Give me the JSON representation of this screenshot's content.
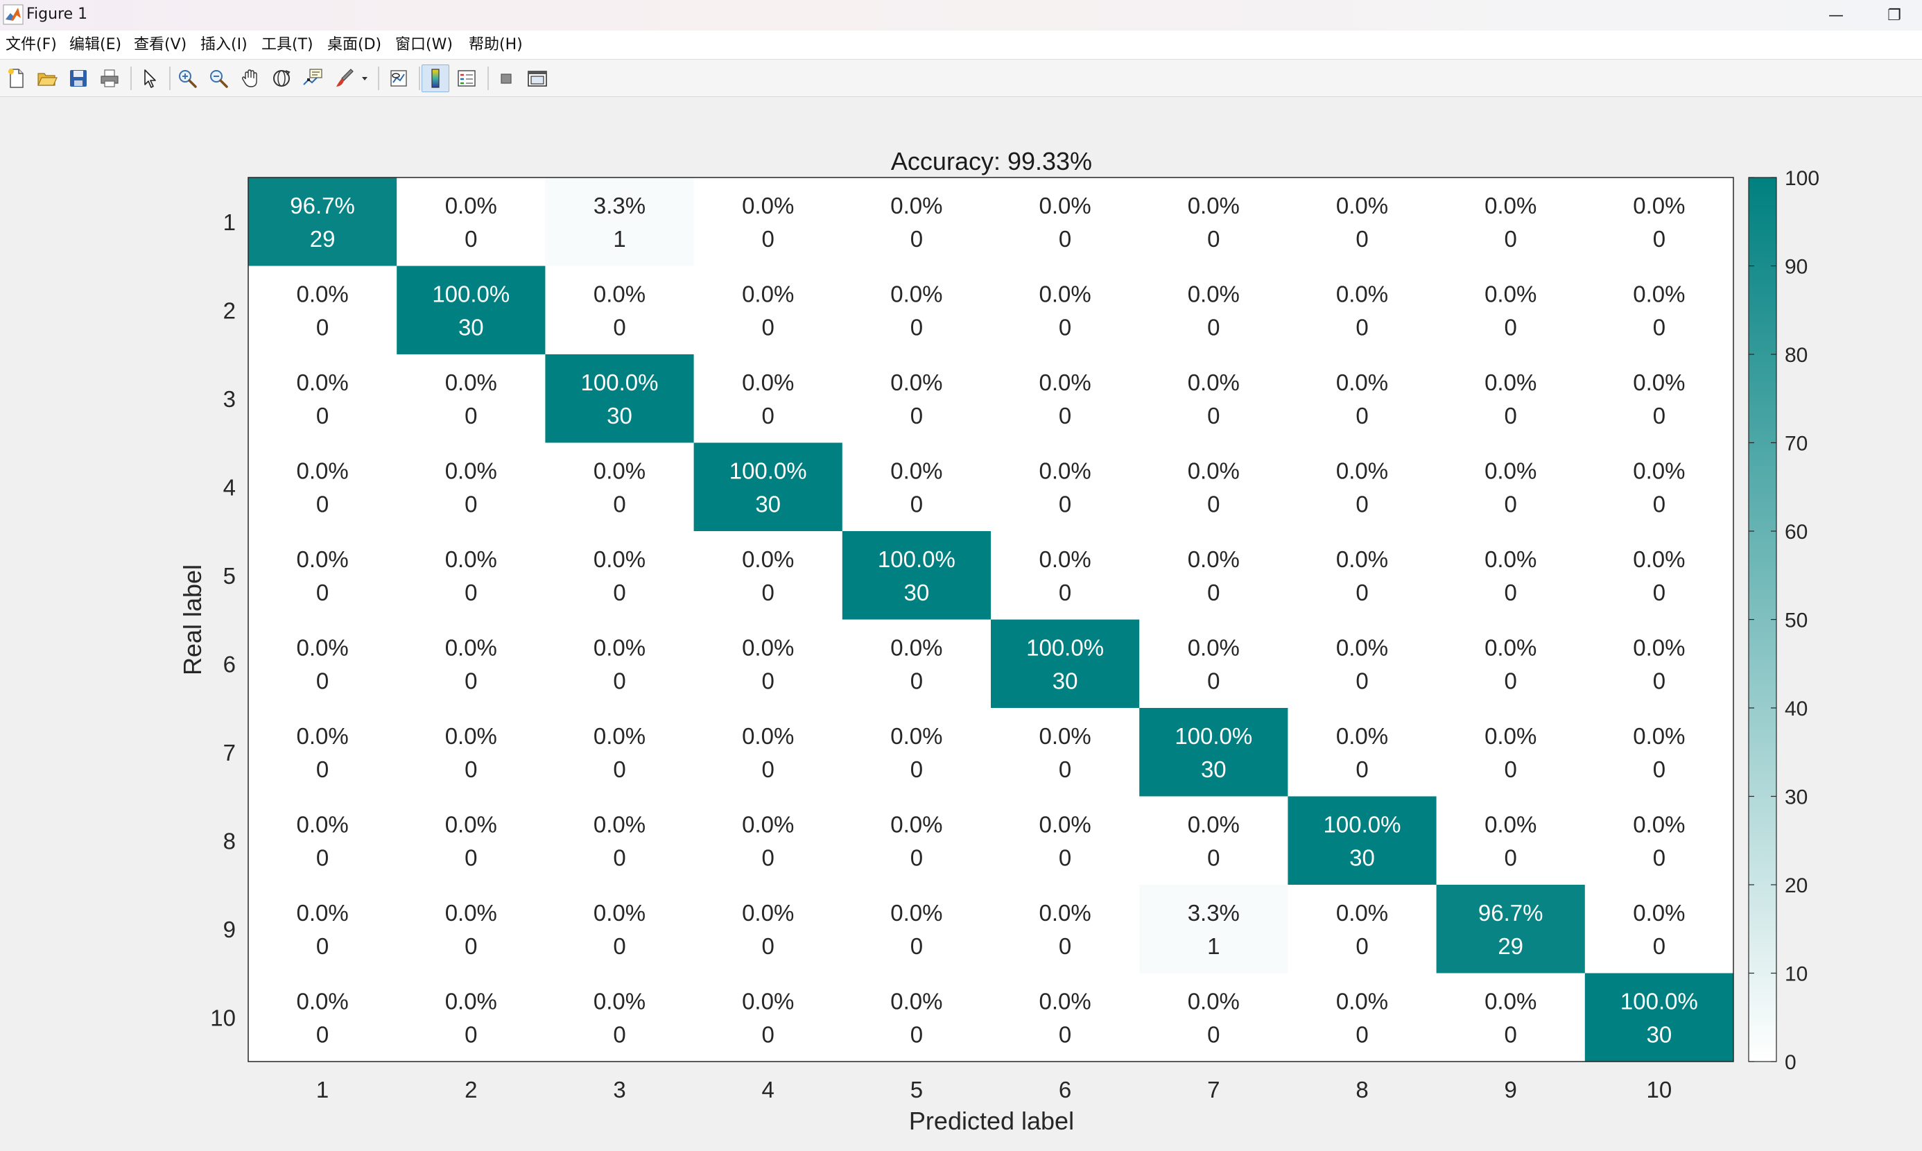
{
  "window": {
    "title": "Figure 1",
    "minimize_glyph": "—",
    "restore_glyph": "❐"
  },
  "menubar": {
    "items": [
      "文件(F)",
      "编辑(E)",
      "查看(V)",
      "插入(I)",
      "工具(T)",
      "桌面(D)",
      "窗口(W)",
      "帮助(H)"
    ]
  },
  "toolbar": {
    "buttons": [
      {
        "name": "new-figure",
        "icon": "new-file-icon"
      },
      {
        "name": "open-file",
        "icon": "folder-open-icon"
      },
      {
        "name": "save",
        "icon": "save-icon"
      },
      {
        "name": "print",
        "icon": "print-icon"
      },
      {
        "name": "edit-plot",
        "icon": "arrow-pointer-icon"
      },
      {
        "name": "zoom-in",
        "icon": "zoom-in-icon"
      },
      {
        "name": "zoom-out",
        "icon": "zoom-out-icon"
      },
      {
        "name": "pan",
        "icon": "hand-pan-icon"
      },
      {
        "name": "rotate-3d",
        "icon": "rotate-3d-icon"
      },
      {
        "name": "data-cursor",
        "icon": "data-tip-icon"
      },
      {
        "name": "brush",
        "icon": "brush-icon"
      },
      {
        "name": "link-plot",
        "icon": "link-plot-icon"
      },
      {
        "name": "insert-colorbar",
        "icon": "colorbar-icon",
        "active": true
      },
      {
        "name": "insert-legend",
        "icon": "legend-icon"
      },
      {
        "name": "hide-plot-tools",
        "icon": "hide-tools-icon"
      },
      {
        "name": "show-plot-tools",
        "icon": "show-tools-icon"
      }
    ]
  },
  "colors": {
    "accent": "#008080",
    "cell_text_dark": "#262626",
    "cell_text_light": "#ffffff",
    "axis_text": "#262626"
  },
  "chart_data": {
    "type": "heatmap",
    "title": "Accuracy: 99.33%",
    "xlabel": "Predicted label",
    "ylabel": "Real label",
    "row_labels": [
      "1",
      "2",
      "3",
      "4",
      "5",
      "6",
      "7",
      "8",
      "9",
      "10"
    ],
    "col_labels": [
      "1",
      "2",
      "3",
      "4",
      "5",
      "6",
      "7",
      "8",
      "9",
      "10"
    ],
    "percent_labels": [
      [
        "96.7%",
        "0.0%",
        "3.3%",
        "0.0%",
        "0.0%",
        "0.0%",
        "0.0%",
        "0.0%",
        "0.0%",
        "0.0%"
      ],
      [
        "0.0%",
        "100.0%",
        "0.0%",
        "0.0%",
        "0.0%",
        "0.0%",
        "0.0%",
        "0.0%",
        "0.0%",
        "0.0%"
      ],
      [
        "0.0%",
        "0.0%",
        "100.0%",
        "0.0%",
        "0.0%",
        "0.0%",
        "0.0%",
        "0.0%",
        "0.0%",
        "0.0%"
      ],
      [
        "0.0%",
        "0.0%",
        "0.0%",
        "100.0%",
        "0.0%",
        "0.0%",
        "0.0%",
        "0.0%",
        "0.0%",
        "0.0%"
      ],
      [
        "0.0%",
        "0.0%",
        "0.0%",
        "0.0%",
        "100.0%",
        "0.0%",
        "0.0%",
        "0.0%",
        "0.0%",
        "0.0%"
      ],
      [
        "0.0%",
        "0.0%",
        "0.0%",
        "0.0%",
        "0.0%",
        "100.0%",
        "0.0%",
        "0.0%",
        "0.0%",
        "0.0%"
      ],
      [
        "0.0%",
        "0.0%",
        "0.0%",
        "0.0%",
        "0.0%",
        "0.0%",
        "100.0%",
        "0.0%",
        "0.0%",
        "0.0%"
      ],
      [
        "0.0%",
        "0.0%",
        "0.0%",
        "0.0%",
        "0.0%",
        "0.0%",
        "0.0%",
        "100.0%",
        "0.0%",
        "0.0%"
      ],
      [
        "0.0%",
        "0.0%",
        "0.0%",
        "0.0%",
        "0.0%",
        "0.0%",
        "3.3%",
        "0.0%",
        "96.7%",
        "0.0%"
      ],
      [
        "0.0%",
        "0.0%",
        "0.0%",
        "0.0%",
        "0.0%",
        "0.0%",
        "0.0%",
        "0.0%",
        "0.0%",
        "100.0%"
      ]
    ],
    "percent_values": [
      [
        96.7,
        0,
        3.3,
        0,
        0,
        0,
        0,
        0,
        0,
        0
      ],
      [
        0,
        100,
        0,
        0,
        0,
        0,
        0,
        0,
        0,
        0
      ],
      [
        0,
        0,
        100,
        0,
        0,
        0,
        0,
        0,
        0,
        0
      ],
      [
        0,
        0,
        0,
        100,
        0,
        0,
        0,
        0,
        0,
        0
      ],
      [
        0,
        0,
        0,
        0,
        100,
        0,
        0,
        0,
        0,
        0
      ],
      [
        0,
        0,
        0,
        0,
        0,
        100,
        0,
        0,
        0,
        0
      ],
      [
        0,
        0,
        0,
        0,
        0,
        0,
        100,
        0,
        0,
        0
      ],
      [
        0,
        0,
        0,
        0,
        0,
        0,
        0,
        100,
        0,
        0
      ],
      [
        0,
        0,
        0,
        0,
        0,
        0,
        3.3,
        0,
        96.7,
        0
      ],
      [
        0,
        0,
        0,
        0,
        0,
        0,
        0,
        0,
        0,
        100
      ]
    ],
    "counts": [
      [
        29,
        0,
        1,
        0,
        0,
        0,
        0,
        0,
        0,
        0
      ],
      [
        0,
        30,
        0,
        0,
        0,
        0,
        0,
        0,
        0,
        0
      ],
      [
        0,
        0,
        30,
        0,
        0,
        0,
        0,
        0,
        0,
        0
      ],
      [
        0,
        0,
        0,
        30,
        0,
        0,
        0,
        0,
        0,
        0
      ],
      [
        0,
        0,
        0,
        0,
        30,
        0,
        0,
        0,
        0,
        0
      ],
      [
        0,
        0,
        0,
        0,
        0,
        30,
        0,
        0,
        0,
        0
      ],
      [
        0,
        0,
        0,
        0,
        0,
        0,
        30,
        0,
        0,
        0
      ],
      [
        0,
        0,
        0,
        0,
        0,
        0,
        0,
        30,
        0,
        0
      ],
      [
        0,
        0,
        0,
        0,
        0,
        0,
        1,
        0,
        29,
        0
      ],
      [
        0,
        0,
        0,
        0,
        0,
        0,
        0,
        0,
        0,
        30
      ]
    ],
    "colorbar": {
      "min": 0,
      "max": 100,
      "ticks": [
        "0",
        "10",
        "20",
        "30",
        "40",
        "50",
        "60",
        "70",
        "80",
        "90",
        "100"
      ],
      "low_color": "#ffffff",
      "high_color": "#008080",
      "location": "right"
    }
  }
}
